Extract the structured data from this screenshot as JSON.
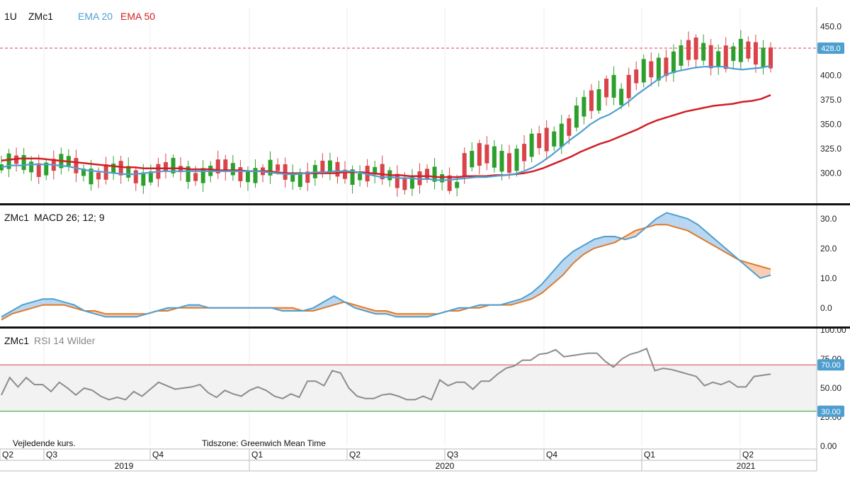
{
  "header": {
    "interval": "1U",
    "symbol": "ZMc1",
    "ema20_label": "EMA 20",
    "ema50_label": "EMA 50"
  },
  "colors": {
    "up": "#2ca02c",
    "down": "#d9434a",
    "ema20": "#4e9fd0",
    "ema50": "#d21f26",
    "macd": "#4e9fd0",
    "signal": "#e07a2a",
    "rsi": "#8c8c8c",
    "rsi_upper": "#d9434a",
    "rsi_lower": "#2ca02c",
    "price_badge": "#4e9fd0"
  },
  "footer": {
    "note_left": "Vejledende kurs.",
    "note_tz": "Tidszone: Greenwich Mean Time"
  },
  "chart_data": [
    {
      "type": "candlestick",
      "title": "",
      "series": [
        {
          "name": "EMA 20",
          "values": [
            306,
            308,
            308,
            309,
            309,
            309,
            308,
            307,
            305,
            303,
            302,
            301,
            300,
            299,
            299,
            300,
            301,
            302,
            302,
            302,
            302,
            302,
            302,
            302,
            302,
            302,
            302,
            302,
            301,
            300,
            299,
            299,
            300,
            301,
            301,
            302,
            302,
            302,
            300,
            298,
            296,
            296,
            295,
            295,
            294,
            294,
            293,
            293,
            294,
            295,
            296,
            296,
            297,
            298,
            299,
            302,
            306,
            312,
            319,
            327,
            335,
            342,
            350,
            356,
            360,
            366,
            373,
            381,
            388,
            395,
            401,
            404,
            406,
            408,
            409,
            409,
            409,
            407,
            406,
            407,
            408,
            410
          ]
        },
        {
          "name": "EMA 50",
          "values": [
            313,
            314,
            315,
            315,
            315,
            314,
            313,
            312,
            311,
            310,
            309,
            308,
            307,
            306,
            306,
            305,
            305,
            305,
            305,
            305,
            304,
            304,
            304,
            303,
            303,
            303,
            302,
            302,
            302,
            301,
            300,
            300,
            300,
            300,
            300,
            300,
            301,
            301,
            301,
            300,
            299,
            298,
            298,
            297,
            297,
            297,
            296,
            296,
            296,
            297,
            297,
            297,
            298,
            298,
            299,
            300,
            302,
            305,
            309,
            313,
            317,
            322,
            326,
            330,
            333,
            337,
            341,
            345,
            350,
            354,
            357,
            360,
            363,
            365,
            367,
            369,
            370,
            371,
            373,
            374,
            376,
            380
          ]
        }
      ],
      "last_price": "428.0",
      "ylim": [
        270,
        470
      ],
      "y_ticks": [
        "300.0",
        "325.0",
        "350.0",
        "375.0",
        "400.0",
        "450.0"
      ],
      "x_ticks": [
        "Q2",
        "Q3",
        "Q4",
        "Q1",
        "Q2",
        "Q3",
        "Q4",
        "Q1",
        "Q2"
      ],
      "years": [
        "2019",
        "2020",
        "2021"
      ]
    },
    {
      "type": "line",
      "title": "MACD 26; 12; 9",
      "series": [
        {
          "name": "MACD",
          "values": [
            -3,
            -1,
            1,
            2,
            3,
            3,
            2,
            1,
            -1,
            -2,
            -3,
            -3,
            -3,
            -3,
            -2,
            -1,
            0,
            0,
            1,
            1,
            0,
            0,
            0,
            0,
            0,
            0,
            0,
            -1,
            -1,
            -1,
            0,
            2,
            4,
            2,
            0,
            -1,
            -2,
            -2,
            -3,
            -3,
            -3,
            -3,
            -2,
            -1,
            0,
            0,
            1,
            1,
            1,
            2,
            3,
            5,
            8,
            12,
            16,
            19,
            21,
            23,
            24,
            24,
            23,
            24,
            27,
            30,
            32,
            31,
            30,
            28,
            25,
            22,
            19,
            16,
            13,
            10,
            11
          ]
        },
        {
          "name": "Signal",
          "values": [
            -4,
            -2,
            -1,
            0,
            1,
            1,
            1,
            0,
            -1,
            -1,
            -2,
            -2,
            -2,
            -2,
            -2,
            -1,
            -1,
            0,
            0,
            0,
            0,
            0,
            0,
            0,
            0,
            0,
            0,
            0,
            0,
            -1,
            -1,
            0,
            1,
            2,
            1,
            0,
            -1,
            -1,
            -2,
            -2,
            -2,
            -2,
            -2,
            -1,
            -1,
            0,
            0,
            1,
            1,
            1,
            2,
            3,
            5,
            8,
            11,
            15,
            18,
            20,
            21,
            22,
            24,
            26,
            27,
            28,
            28,
            27,
            26,
            24,
            22,
            20,
            18,
            16,
            15,
            14,
            13
          ]
        }
      ],
      "ylim": [
        -6,
        34
      ],
      "y_ticks": [
        "0.0",
        "10.0",
        "20.0",
        "30.0"
      ]
    },
    {
      "type": "line",
      "title": "RSI 14 Wilder",
      "series": [
        {
          "name": "RSI",
          "values": [
            44,
            59,
            51,
            59,
            53,
            53,
            47,
            55,
            50,
            44,
            50,
            48,
            43,
            40,
            42,
            40,
            47,
            43,
            49,
            55,
            52,
            49,
            50,
            51,
            53,
            46,
            42,
            48,
            45,
            43,
            48,
            51,
            48,
            43,
            41,
            45,
            42,
            56,
            56,
            52,
            65,
            63,
            50,
            43,
            41,
            41,
            44,
            45,
            43,
            40,
            40,
            43,
            40,
            57,
            52,
            55,
            55,
            49,
            56,
            56,
            62,
            67,
            69,
            74,
            74,
            79,
            80,
            83,
            77,
            78,
            79,
            80,
            80,
            73,
            68,
            75,
            79,
            81,
            84,
            65,
            67,
            66,
            64,
            62,
            60,
            52,
            55,
            53,
            56,
            51,
            51,
            60,
            61,
            62
          ]
        }
      ],
      "upper_band": 70,
      "lower_band": 30,
      "upper_label": "70.00",
      "lower_label": "30.00",
      "ylim": [
        0,
        100
      ],
      "y_ticks": [
        "0.00",
        "25.00",
        "50.00",
        "75.00",
        "100.00"
      ]
    }
  ]
}
